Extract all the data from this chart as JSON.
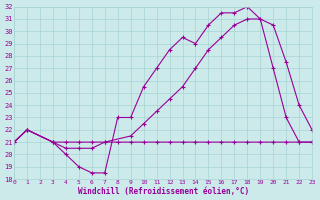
{
  "bg_color": "#cceaea",
  "grid_color": "#a8d4d4",
  "line_color": "#990099",
  "xlabel": "Windchill (Refroidissement éolien,°C)",
  "xlim": [
    0,
    23
  ],
  "ylim": [
    18,
    32
  ],
  "xticks": [
    0,
    1,
    2,
    3,
    4,
    5,
    6,
    7,
    8,
    9,
    10,
    11,
    12,
    13,
    14,
    15,
    16,
    17,
    18,
    19,
    20,
    21,
    22,
    23
  ],
  "yticks": [
    18,
    19,
    20,
    21,
    22,
    23,
    24,
    25,
    26,
    27,
    28,
    29,
    30,
    31,
    32
  ],
  "line1_x": [
    0,
    1,
    3,
    4,
    5,
    6,
    7,
    8,
    9,
    10,
    11,
    12,
    13,
    14,
    15,
    16,
    17,
    18,
    19,
    20,
    21,
    22,
    23
  ],
  "line1_y": [
    21,
    22,
    21,
    20,
    19,
    18.5,
    18.5,
    23,
    23,
    25.5,
    27,
    28.5,
    29.5,
    29,
    30.5,
    31.5,
    31.5,
    32,
    31,
    27,
    23,
    21,
    21
  ],
  "line2_x": [
    0,
    1,
    3,
    4,
    5,
    6,
    7,
    9,
    10,
    11,
    12,
    13,
    14,
    15,
    16,
    17,
    18,
    19,
    20,
    21,
    22,
    23
  ],
  "line2_y": [
    21,
    22,
    21,
    20.5,
    20.5,
    20.5,
    21,
    21.5,
    22.5,
    23.5,
    24.5,
    25.5,
    27,
    28.5,
    29.5,
    30.5,
    31,
    31,
    30.5,
    27.5,
    24,
    22
  ],
  "line3_x": [
    0,
    1,
    3,
    4,
    5,
    6,
    7,
    8,
    9,
    10,
    11,
    12,
    13,
    14,
    15,
    16,
    17,
    18,
    19,
    20,
    21,
    22,
    23
  ],
  "line3_y": [
    21,
    22,
    21,
    21,
    21,
    21,
    21,
    21,
    21,
    21,
    21,
    21,
    21,
    21,
    21,
    21,
    21,
    21,
    21,
    21,
    21,
    21,
    21
  ]
}
